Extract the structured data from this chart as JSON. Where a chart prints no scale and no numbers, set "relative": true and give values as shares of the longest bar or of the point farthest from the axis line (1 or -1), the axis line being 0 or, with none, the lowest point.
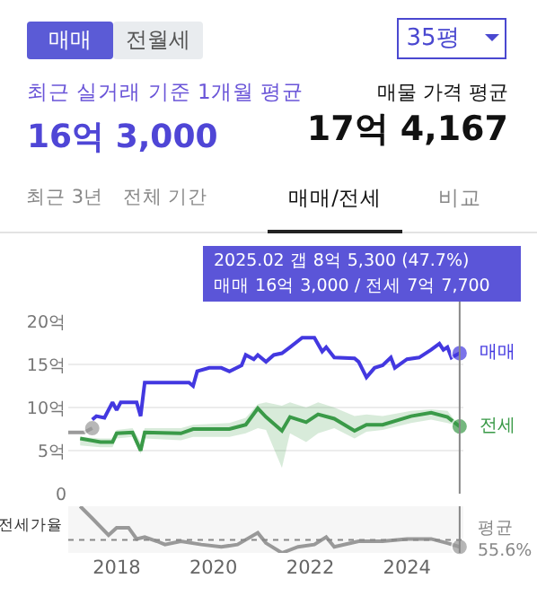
{
  "chart_data": [
    {
      "type": "line",
      "annotations": [
        "매매",
        "전월세",
        "35평",
        "최근 실거래 기준 1개월 평균",
        "16억 3,000",
        "매물 가격 평균",
        "17억 4,167",
        "최근 3년",
        "전체 기간",
        "매매/전세",
        "비교",
        "2025.02  갭 8억 5,300 (47.7%)",
        "매매 16억 3,000 / 전세 7억 7,700"
      ],
      "xlim": [
        "2017-01",
        "2025-03"
      ],
      "ylim": [
        0,
        20
      ],
      "yticks": [
        0,
        {
          "value": 5,
          "label": "5억"
        },
        {
          "value": 10,
          "label": "10억"
        },
        {
          "value": 15,
          "label": "15억"
        },
        {
          "value": 20,
          "label": "20억"
        }
      ],
      "grid": "y",
      "legend": false,
      "tick_labels": "y",
      "line_style": "solid",
      "ref_lines": [
        {
          "axis": "x",
          "value": "2025-02",
          "label": null,
          "color": "#888888"
        }
      ],
      "series": [
        {
          "color": "#9a9a9a",
          "x": [
            "2017-01",
            "2017-05",
            "2017-07"
          ],
          "values": [
            7.1,
            7.1,
            7.6
          ]
        },
        {
          "name": "매매",
          "color": "#4338e0",
          "x": [
            "2017-07",
            "2017-08",
            "2017-10",
            "2017-12",
            "2018-01",
            "2018-02",
            "2018-06",
            "2018-07",
            "2018-08",
            "2019-07",
            "2019-08",
            "2019-09",
            "2019-12",
            "2020-03",
            "2020-05",
            "2020-08",
            "2020-09",
            "2020-11",
            "2020-12",
            "2021-02",
            "2021-04",
            "2021-06",
            "2021-08",
            "2021-11",
            "2022-02",
            "2022-04",
            "2022-05",
            "2022-07",
            "2022-12",
            "2023-01",
            "2023-03",
            "2023-05",
            "2023-07",
            "2023-09",
            "2023-10",
            "2024-01",
            "2024-04",
            "2024-07",
            "2024-09",
            "2024-10",
            "2024-11",
            "2024-12",
            "2025-02"
          ],
          "values": [
            8.6,
            9.0,
            8.8,
            10.6,
            9.7,
            10.6,
            10.6,
            9.0,
            12.9,
            12.9,
            12.5,
            14.2,
            14.6,
            14.6,
            14.2,
            14.9,
            16.1,
            15.6,
            16.1,
            15.3,
            16.1,
            16.3,
            17.0,
            18.1,
            18.1,
            16.5,
            17.0,
            15.8,
            15.7,
            15.3,
            13.5,
            14.6,
            14.9,
            15.8,
            14.6,
            15.6,
            15.8,
            16.7,
            17.4,
            16.7,
            17.0,
            15.8,
            16.3
          ]
        },
        {
          "name": "전세",
          "color": "#3a9a48",
          "x": [
            "2017-04",
            "2017-09",
            "2017-12",
            "2018-01",
            "2018-05",
            "2018-07",
            "2018-08",
            "2019-05",
            "2019-08",
            "2020-05",
            "2020-09",
            "2020-12",
            "2021-02",
            "2021-06",
            "2021-08",
            "2021-12",
            "2022-03",
            "2022-07",
            "2022-12",
            "2023-03",
            "2023-07",
            "2024-02",
            "2024-07",
            "2024-11",
            "2025-02"
          ],
          "values": [
            6.4,
            6.0,
            6.0,
            7.0,
            7.1,
            5.0,
            7.1,
            7.0,
            7.5,
            7.5,
            8.0,
            9.9,
            8.9,
            7.3,
            8.9,
            8.3,
            9.2,
            8.7,
            7.3,
            8.0,
            8.0,
            9.0,
            9.4,
            8.9,
            7.8
          ],
          "lower": [
            5.6,
            5.4,
            5.4,
            6.4,
            6.6,
            4.6,
            6.4,
            6.2,
            6.6,
            6.6,
            7.0,
            7.6,
            7.4,
            3.0,
            7.0,
            6.0,
            7.0,
            7.6,
            6.4,
            7.2,
            7.4,
            8.2,
            8.6,
            8.2,
            7.8
          ],
          "upper": [
            6.6,
            6.4,
            6.4,
            7.4,
            7.6,
            6.0,
            7.6,
            7.6,
            8.0,
            8.2,
            8.8,
            10.4,
            10.6,
            10.2,
            10.6,
            10.0,
            10.6,
            10.0,
            9.0,
            9.2,
            9.0,
            9.6,
            9.8,
            9.6,
            7.8
          ]
        }
      ]
    },
    {
      "type": "line",
      "relative": true,
      "ylabel": "전세가율",
      "xlim": [
        "2017-01",
        "2025-03"
      ],
      "xticks": [
        {
          "value": "2018-01",
          "label": "2018"
        },
        {
          "value": "2020-01",
          "label": "2020"
        },
        {
          "value": "2022-01",
          "label": "2022"
        },
        {
          "value": "2024-01",
          "label": "2024"
        }
      ],
      "tick_labels": "x",
      "legend": false,
      "grid": false,
      "line_style": "solid",
      "ref_lines": [
        {
          "axis": "y",
          "value": 0.28,
          "label": "평균 55.6%",
          "color": "#888888",
          "line_style": "dotted"
        },
        {
          "axis": "x",
          "value": "2025-02",
          "label": null,
          "color": "#888888"
        }
      ],
      "series": [
        {
          "color": "#999999",
          "x": [
            "2017-04",
            "2017-07",
            "2017-11",
            "2018-01",
            "2018-04",
            "2018-06",
            "2018-08",
            "2018-11",
            "2019-01",
            "2019-05",
            "2019-10",
            "2020-03",
            "2020-07",
            "2020-12",
            "2021-02",
            "2021-06",
            "2021-10",
            "2022-02",
            "2022-05",
            "2022-07",
            "2023-01",
            "2023-07",
            "2024-01",
            "2024-07",
            "2024-11",
            "2025-02"
          ],
          "values": [
            1,
            0.74,
            0.38,
            0.54,
            0.54,
            0.3,
            0.34,
            0.25,
            0.18,
            0.25,
            0.18,
            0.13,
            0.18,
            0.43,
            0.21,
            0,
            0.13,
            0.18,
            0.34,
            0.13,
            0.25,
            0.25,
            0.3,
            0.3,
            0.21,
            0.13
          ]
        }
      ]
    }
  ]
}
